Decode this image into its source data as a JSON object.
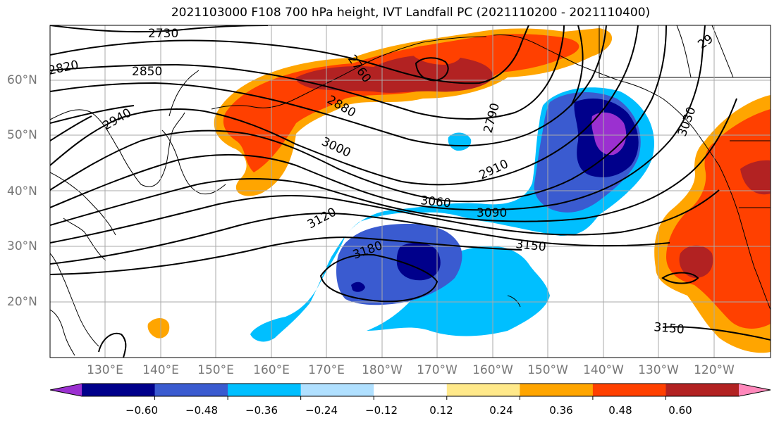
{
  "title": "2021103000 F108 700 hPa height, IVT Landfall PC (2021110200 - 2021110400)",
  "lat_labels": [
    "60°N",
    "50°N",
    "40°N",
    "30°N",
    "20°N"
  ],
  "lon_labels": [
    "130°E",
    "140°E",
    "150°E",
    "160°E",
    "170°E",
    "180°W",
    "170°W",
    "160°W",
    "150°W",
    "140°W",
    "130°W",
    "120°W"
  ],
  "contour_labels": [
    "2730",
    "2820",
    "2850",
    "2940",
    "2880",
    "3000",
    "2910",
    "3060",
    "3090",
    "3120",
    "3150",
    "3180",
    "3150",
    "2790",
    "3030",
    "2760",
    "29"
  ],
  "colorbar": {
    "tick_labels": [
      "−0.60",
      "−0.48",
      "−0.36",
      "−0.24",
      "−0.12",
      "0.12",
      "0.24",
      "0.36",
      "0.48",
      "0.60"
    ],
    "colors": [
      "#9b30d0",
      "#00008b",
      "#3a5bd0",
      "#00bfff",
      "#b0e0ff",
      "#ffffff",
      "#ffe98a",
      "#ffa500",
      "#ff4000",
      "#b22222",
      "#ff88bb"
    ]
  }
}
